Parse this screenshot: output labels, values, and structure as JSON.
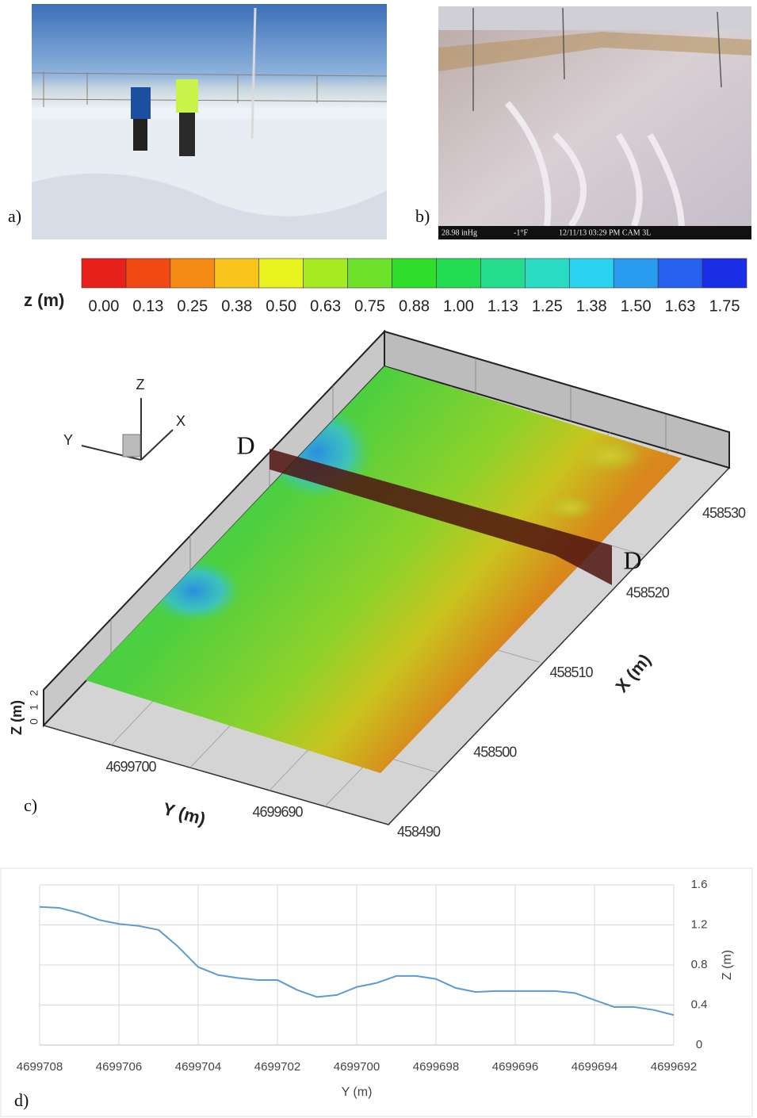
{
  "panel_labels": [
    "a)",
    "b)",
    "c)",
    "d)"
  ],
  "camera_overlay": [
    "28.98 inHg",
    "-1°F",
    "12/11/13 03:29 PM  CAM 3L"
  ],
  "surface_plot": {
    "colorbar_label": "z (m)",
    "colorbar_ticks": [
      {
        "value": 0,
        "label": "0.00"
      },
      {
        "value": 0.13,
        "label": "0.13"
      },
      {
        "value": 0.25,
        "label": "0.25"
      },
      {
        "value": 0.38,
        "label": "0.38"
      },
      {
        "value": 0.5,
        "label": "0.50"
      },
      {
        "value": 0.63,
        "label": "0.63"
      },
      {
        "value": 0.75,
        "label": "0.75"
      },
      {
        "value": 0.88,
        "label": "0.88"
      },
      {
        "value": 1,
        "label": "1.00"
      },
      {
        "value": 1.13,
        "label": "1.13"
      },
      {
        "value": 1.25,
        "label": "1.25"
      },
      {
        "value": 1.38,
        "label": "1.38"
      },
      {
        "value": 1.5,
        "label": "1.50"
      },
      {
        "value": 1.63,
        "label": "1.63"
      },
      {
        "value": 1.75,
        "label": "1.75"
      }
    ],
    "colorbar_colors": [
      "#e8201c",
      "#f04a12",
      "#f58a14",
      "#f9c41c",
      "#e8f21e",
      "#a6ea22",
      "#6ee22a",
      "#2ede2a",
      "#22dc52",
      "#26dc8e",
      "#2adcc4",
      "#2ad2f0",
      "#2a9cf0",
      "#2660ee",
      "#1a2ee6"
    ],
    "axis_triad": [
      "Z",
      "Y",
      "X"
    ],
    "section_labels": [
      "D",
      "D"
    ],
    "x_axis_label": "X (m)",
    "x_ticks": [
      458490,
      458500,
      458510,
      458520,
      458530
    ],
    "y_axis_label": "Y (m)",
    "y_ticks": [
      4699700,
      4699690
    ],
    "z_axis_label": "Z (m)",
    "z_ticks": [
      0,
      1,
      2
    ]
  },
  "chart_data": {
    "type": "line",
    "xlabel": "Y (m)",
    "ylabel": "Z (m)",
    "color": "#5b9bd5",
    "x": [
      4699708,
      4699707.5,
      4699707,
      4699706.5,
      4699706,
      4699705.5,
      4699705,
      4699704.5,
      4699704,
      4699703.5,
      4699703,
      4699702.5,
      4699702,
      4699701.5,
      4699701,
      4699700.5,
      4699700,
      4699699.5,
      4699699,
      4699698.5,
      4699698,
      4699697.5,
      4699697,
      4699696.5,
      4699696,
      4699695.5,
      4699695,
      4699694.5,
      4699694,
      4699693.5,
      4699693,
      4699692.5,
      4699692
    ],
    "values": [
      1.38,
      1.37,
      1.32,
      1.25,
      1.21,
      1.19,
      1.15,
      0.98,
      0.78,
      0.7,
      0.67,
      0.65,
      0.65,
      0.55,
      0.48,
      0.5,
      0.58,
      0.62,
      0.69,
      0.69,
      0.66,
      0.57,
      0.53,
      0.54,
      0.54,
      0.54,
      0.54,
      0.52,
      0.45,
      0.38,
      0.38,
      0.35,
      0.3
    ],
    "xlim": [
      4699708,
      4699692
    ],
    "ylim": [
      0,
      1.6
    ],
    "xticks": [
      4699708,
      4699706,
      4699704,
      4699702,
      4699700,
      4699698,
      4699696,
      4699694,
      4699692
    ],
    "yticks": [
      0,
      0.4,
      0.8,
      1.2,
      1.6
    ],
    "grid": true
  }
}
